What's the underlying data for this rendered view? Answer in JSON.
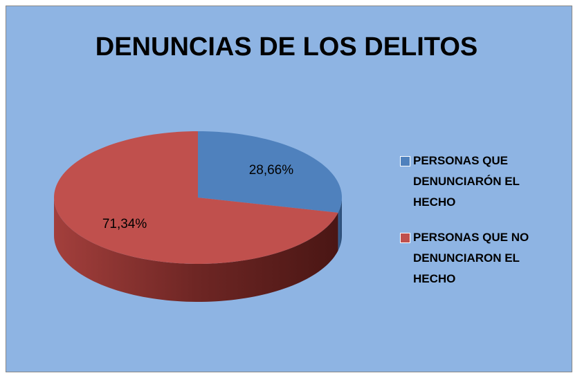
{
  "chart_data": {
    "type": "pie",
    "title": "DENUNCIAS DE LOS DELITOS",
    "categories": [
      "PERSONAS QUE DENUNCIARÓN EL HECHO",
      "PERSONAS QUE NO DENUNCIARON EL HECHO"
    ],
    "values": [
      28.66,
      71.34
    ],
    "value_labels": [
      "28,66%",
      "71,34%"
    ],
    "colors": [
      "#4f81bd",
      "#c0504d"
    ],
    "legend": "right"
  }
}
